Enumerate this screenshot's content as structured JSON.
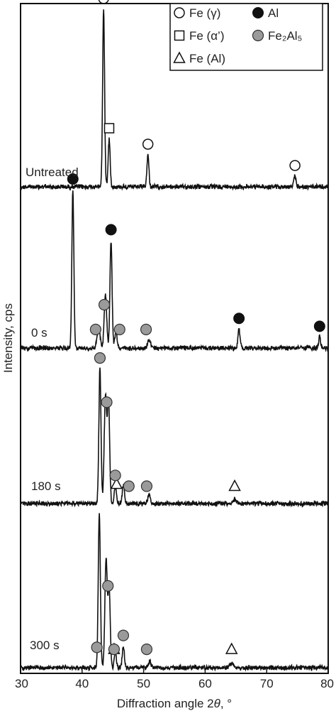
{
  "chart_data": {
    "type": "line",
    "title": "",
    "xlabel": "Diffraction angle 2θ, °",
    "xlabel_parts": [
      "Diffraction angle 2",
      "θ",
      ", °"
    ],
    "ylabel": "Intensity, cps",
    "xlim": [
      30,
      80
    ],
    "xticks": [
      30,
      40,
      50,
      60,
      70,
      80
    ],
    "grid": false,
    "legend_position": "top-right",
    "colors": {
      "filled": "#111111",
      "gray": "#9a9a9a",
      "line": "#111111"
    },
    "legend": [
      {
        "marker": "open-circle",
        "label": "Fe (γ)"
      },
      {
        "marker": "filled-circle",
        "label": "Al"
      },
      {
        "marker": "open-square",
        "label": "Fe (α’)"
      },
      {
        "marker": "gray-circle",
        "label": "Fe₂Al₅"
      },
      {
        "marker": "open-triangle",
        "label": "Fe (Al)"
      }
    ],
    "series": [
      {
        "name": "Untreated",
        "peaks": [
          {
            "x": 43.5,
            "h": 1.0,
            "w": 0.16
          },
          {
            "x": 44.4,
            "h": 0.27,
            "w": 0.16
          },
          {
            "x": 50.7,
            "h": 0.18,
            "w": 0.16
          },
          {
            "x": 74.6,
            "h": 0.06,
            "w": 0.18
          }
        ],
        "markers": [
          {
            "x": 43.5,
            "type": "open-circle"
          },
          {
            "x": 44.4,
            "type": "open-square"
          },
          {
            "x": 50.7,
            "type": "open-circle"
          },
          {
            "x": 74.6,
            "type": "open-circle"
          }
        ]
      },
      {
        "name": "0 s",
        "peaks": [
          {
            "x": 38.5,
            "h": 1.0,
            "w": 0.16
          },
          {
            "x": 42.7,
            "h": 0.12,
            "w": 0.25
          },
          {
            "x": 43.8,
            "h": 0.34,
            "w": 0.2
          },
          {
            "x": 44.7,
            "h": 0.68,
            "w": 0.17
          },
          {
            "x": 45.5,
            "h": 0.1,
            "w": 0.2
          },
          {
            "x": 50.9,
            "h": 0.05,
            "w": 0.22
          },
          {
            "x": 65.5,
            "h": 0.12,
            "w": 0.17
          },
          {
            "x": 78.6,
            "h": 0.07,
            "w": 0.17
          }
        ],
        "markers": [
          {
            "x": 38.5,
            "type": "filled-circle"
          },
          {
            "x": 44.7,
            "type": "filled-circle"
          },
          {
            "x": 43.6,
            "type": "gray-circle"
          },
          {
            "x": 42.2,
            "type": "gray-circle"
          },
          {
            "x": 46.1,
            "type": "gray-circle"
          },
          {
            "x": 50.4,
            "type": "gray-circle"
          },
          {
            "x": 65.5,
            "type": "filled-circle"
          },
          {
            "x": 78.6,
            "type": "filled-circle"
          }
        ]
      },
      {
        "name": "180 s",
        "peaks": [
          {
            "x": 42.9,
            "h": 1.0,
            "w": 0.17
          },
          {
            "x": 43.8,
            "h": 0.8,
            "w": 0.2
          },
          {
            "x": 44.3,
            "h": 0.75,
            "w": 0.18
          },
          {
            "x": 45.4,
            "h": 0.13,
            "w": 0.17
          },
          {
            "x": 46.7,
            "h": 0.14,
            "w": 0.17
          },
          {
            "x": 50.9,
            "h": 0.07,
            "w": 0.2
          },
          {
            "x": 64.8,
            "h": 0.03,
            "w": 0.3
          }
        ],
        "markers": [
          {
            "x": 42.9,
            "type": "gray-circle"
          },
          {
            "x": 44.0,
            "type": "gray-circle"
          },
          {
            "x": 45.6,
            "type": "open-triangle"
          },
          {
            "x": 45.4,
            "type": "gray-circle"
          },
          {
            "x": 47.6,
            "type": "gray-circle"
          },
          {
            "x": 50.5,
            "type": "gray-circle"
          },
          {
            "x": 64.8,
            "type": "open-triangle"
          }
        ]
      },
      {
        "name": "300 s",
        "peaks": [
          {
            "x": 42.8,
            "h": 1.0,
            "w": 0.17
          },
          {
            "x": 43.9,
            "h": 0.7,
            "w": 0.19
          },
          {
            "x": 44.4,
            "h": 0.52,
            "w": 0.17
          },
          {
            "x": 45.4,
            "h": 0.1,
            "w": 0.17
          },
          {
            "x": 46.7,
            "h": 0.14,
            "w": 0.17
          },
          {
            "x": 51.0,
            "h": 0.04,
            "w": 0.2
          },
          {
            "x": 64.3,
            "h": 0.03,
            "w": 0.3
          }
        ],
        "markers": [
          {
            "x": 42.4,
            "type": "gray-circle"
          },
          {
            "x": 44.2,
            "type": "gray-circle"
          },
          {
            "x": 45.2,
            "type": "open-triangle"
          },
          {
            "x": 45.2,
            "type": "gray-circle"
          },
          {
            "x": 46.7,
            "type": "gray-circle"
          },
          {
            "x": 50.5,
            "type": "gray-circle"
          },
          {
            "x": 64.3,
            "type": "open-triangle"
          }
        ]
      }
    ]
  }
}
